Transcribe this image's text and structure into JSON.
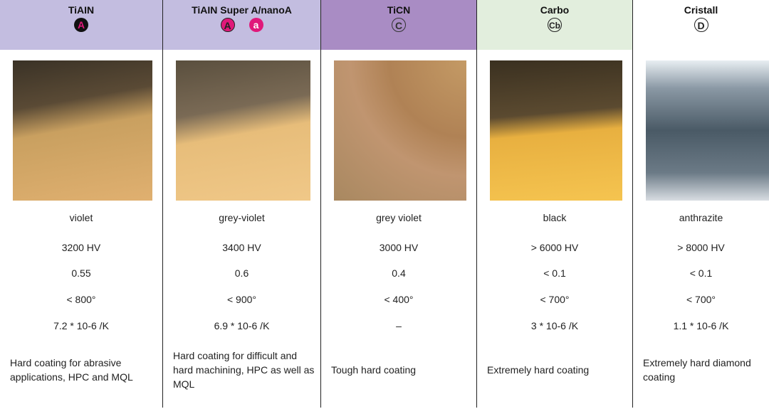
{
  "columns": [
    {
      "title": "TiAIN",
      "badges": [
        "A"
      ],
      "color": "violet",
      "hardness": "3200 HV",
      "friction": "0.55",
      "temperature": "< 800°",
      "expansion": "7.2 * 10-6 /K",
      "description": "Hard coating for abrasive applications, HPC and MQL"
    },
    {
      "title": "TiAIN Super A/nanoA",
      "badges": [
        "A",
        "a"
      ],
      "color": "grey-violet",
      "hardness": "3400 HV",
      "friction": "0.6",
      "temperature": "< 900°",
      "expansion": "6.9 * 10-6 /K",
      "description": "Hard coating for difficult and hard machining, HPC as well as MQL"
    },
    {
      "title": "TiCN",
      "badges": [
        "C"
      ],
      "color": "grey violet",
      "hardness": "3000 HV",
      "friction": "0.4",
      "temperature": "< 400°",
      "expansion": "–",
      "description": "Tough hard coating"
    },
    {
      "title": "Carbo",
      "badges": [
        "Cb"
      ],
      "color": "black",
      "hardness": "> 6000 HV",
      "friction": "< 0.1",
      "temperature": "< 700°",
      "expansion": "3 * 10-6 /K",
      "description": "Extremely hard coating"
    },
    {
      "title": "Cristall",
      "badges": [
        "D"
      ],
      "color": "anthrazite",
      "hardness": "> 8000 HV",
      "friction": "< 0.1",
      "temperature": "< 700°",
      "expansion": "1.1 * 10-6 /K",
      "description": "Extremely hard diamond coating"
    }
  ]
}
